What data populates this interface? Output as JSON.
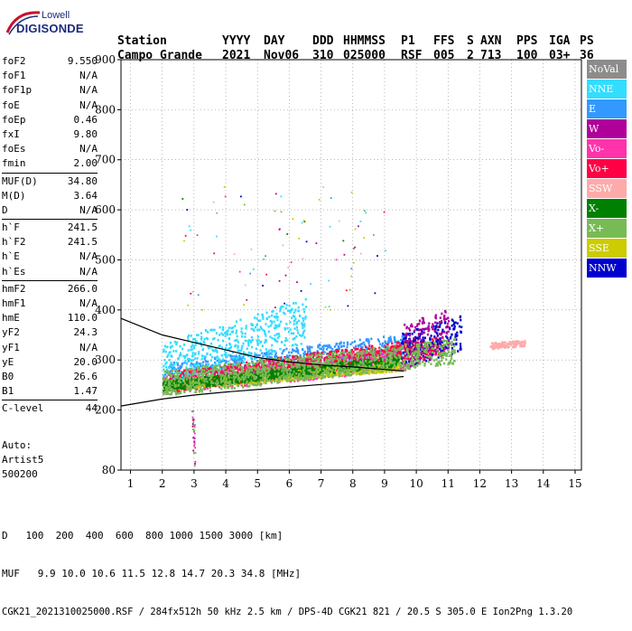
{
  "logo": {
    "line1": "Lowell",
    "line2": "DIGISONDE"
  },
  "header": {
    "labels": [
      "Station",
      "YYYY",
      "DAY",
      "DDD",
      "HHMMSS",
      "P1",
      "FFS",
      "S",
      "AXN",
      "PPS",
      "IGA",
      "PS"
    ],
    "values": [
      "Campo Grande",
      "2021",
      "Nov06",
      "310",
      "025000",
      "RSF",
      "005",
      "2",
      "713",
      "100",
      "03+",
      "36"
    ]
  },
  "params": {
    "group1": [
      {
        "label": "foF2",
        "value": "9.550"
      },
      {
        "label": "foF1",
        "value": "N/A"
      },
      {
        "label": "foF1p",
        "value": "N/A"
      },
      {
        "label": "foE",
        "value": "N/A"
      },
      {
        "label": "foEp",
        "value": "0.46"
      },
      {
        "label": "fxI",
        "value": "9.80"
      },
      {
        "label": "foEs",
        "value": "N/A"
      },
      {
        "label": "fmin",
        "value": "2.00"
      }
    ],
    "group2": [
      {
        "label": "MUF(D)",
        "value": "34.80"
      },
      {
        "label": "M(D)",
        "value": "3.64"
      },
      {
        "label": "D",
        "value": "N/A"
      }
    ],
    "group3": [
      {
        "label": "h`F",
        "value": "241.5"
      },
      {
        "label": "h`F2",
        "value": "241.5"
      },
      {
        "label": "h`E",
        "value": "N/A"
      },
      {
        "label": "h`Es",
        "value": "N/A"
      }
    ],
    "group4": [
      {
        "label": "hmF2",
        "value": "266.0"
      },
      {
        "label": "hmF1",
        "value": "N/A"
      },
      {
        "label": "hmE",
        "value": "110.0"
      },
      {
        "label": "yF2",
        "value": "24.3"
      },
      {
        "label": "yF1",
        "value": "N/A"
      },
      {
        "label": "yE",
        "value": "20.0"
      },
      {
        "label": "B0",
        "value": "26.6"
      },
      {
        "label": "B1",
        "value": "1.47"
      }
    ],
    "group5": [
      {
        "label": "C-level",
        "value": "44"
      }
    ]
  },
  "auto": {
    "line1": "Auto:",
    "line2": "Artist5",
    "line3": "500200"
  },
  "legend": [
    {
      "label": "NoVal",
      "color": "#8c8c8c"
    },
    {
      "label": "NNE",
      "color": "#33ddff"
    },
    {
      "label": "E",
      "color": "#3399ff"
    },
    {
      "label": "W",
      "color": "#b0009a"
    },
    {
      "label": "Vo-",
      "color": "#ff33aa"
    },
    {
      "label": "Vo+",
      "color": "#ff0044"
    },
    {
      "label": "SSW",
      "color": "#ffaaaa"
    },
    {
      "label": "X-",
      "color": "#008000"
    },
    {
      "label": "X+",
      "color": "#77bb55"
    },
    {
      "label": "SSE",
      "color": "#cccc00"
    },
    {
      "label": "NNW",
      "color": "#0000cc"
    }
  ],
  "chart_data": {
    "type": "scatter",
    "xlabel": "",
    "ylabel": "",
    "xlim": [
      0.7,
      15.2
    ],
    "ylim": [
      80,
      900
    ],
    "x_ticks": [
      1,
      2,
      3,
      4,
      5,
      6,
      7,
      8,
      9,
      10,
      11,
      12,
      13,
      14,
      15
    ],
    "y_ticks": [
      80,
      200,
      300,
      400,
      500,
      600,
      700,
      800,
      900
    ],
    "grid": true,
    "trace_curves": [
      {
        "name": "",
        "points": [
          [
            0.7,
            208
          ],
          [
            2,
            222
          ],
          [
            3,
            230
          ],
          [
            4,
            236
          ],
          [
            5,
            241
          ],
          [
            6,
            246
          ],
          [
            7,
            251
          ],
          [
            8,
            256
          ],
          [
            9,
            263
          ],
          [
            9.6,
            267
          ]
        ]
      },
      {
        "name": "",
        "points": [
          [
            0.7,
            383
          ],
          [
            2,
            350
          ],
          [
            3,
            335
          ],
          [
            4,
            320
          ],
          [
            5,
            305
          ],
          [
            6,
            296
          ],
          [
            7,
            290
          ],
          [
            8,
            286
          ],
          [
            9,
            281
          ],
          [
            9.6,
            278
          ]
        ]
      }
    ],
    "echo_regions": [
      {
        "color": "#3399ff",
        "x": [
          2.0,
          9.8
        ],
        "y_base": [
          270,
          330
        ],
        "spread": 25
      },
      {
        "color": "#ff33aa",
        "x": [
          2.0,
          9.8
        ],
        "y_base": [
          255,
          305
        ],
        "spread": 22
      },
      {
        "color": "#ff0044",
        "x": [
          2.2,
          10.8
        ],
        "y_base": [
          258,
          330
        ],
        "spread": 20
      },
      {
        "color": "#cccc00",
        "x": [
          2.0,
          9.5
        ],
        "y_base": [
          250,
          290
        ],
        "spread": 10
      },
      {
        "color": "#33ddff",
        "x": [
          2.0,
          6.5
        ],
        "y_base": [
          290,
          380
        ],
        "spread": 45
      },
      {
        "color": "#0000cc",
        "x": [
          9.5,
          11.4
        ],
        "y_base": [
          320,
          355
        ],
        "spread": 35
      },
      {
        "color": "#b0009a",
        "x": [
          9.6,
          11.0
        ],
        "y_base": [
          330,
          360
        ],
        "spread": 45
      },
      {
        "color": "#008000",
        "x": [
          2.0,
          9.5
        ],
        "y_base": [
          250,
          300
        ],
        "spread": 10
      },
      {
        "color": "#77bb55",
        "x": [
          2.0,
          11.2
        ],
        "y_base": [
          255,
          320
        ],
        "spread": 25
      },
      {
        "color": "#ffaaaa",
        "x": [
          12.3,
          13.4
        ],
        "y_base": [
          330,
          335
        ],
        "spread": 6
      }
    ]
  },
  "footer": {
    "d_label": "D",
    "d_values": "100  200  400  600  800 1000 1500 3000 [km]",
    "muf_label": "MUF",
    "muf_values": "9.9 10.0 10.6 11.5 12.8 14.7 20.3 34.8 [MHz]",
    "file_line": "CGK21_2021310025000.RSF / 284fx512h 50 kHz 2.5 km / DPS-4D CGK21 821 / 20.5 S 305.0 E Ion2Png 1.3.20"
  }
}
